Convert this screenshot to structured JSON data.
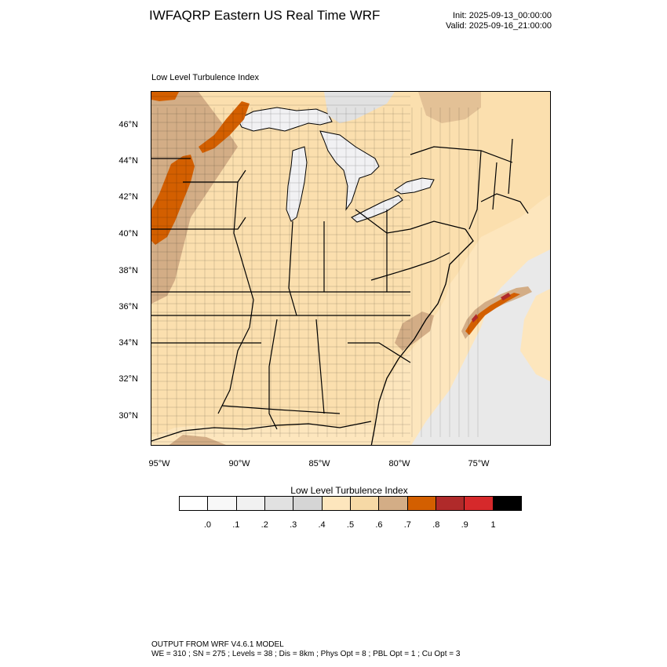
{
  "header": {
    "title": "IWFAQRP Eastern US Real Time WRF",
    "init": "Init: 2025-09-13_00:00:00",
    "valid": "Valid: 2025-09-16_21:00:00"
  },
  "field_title": "Low Level Turbulence Index",
  "map": {
    "lat_labels": [
      "46°N",
      "44°N",
      "42°N",
      "40°N",
      "38°N",
      "36°N",
      "34°N",
      "32°N",
      "30°N"
    ],
    "lon_labels": [
      "95°W",
      "90°W",
      "85°W",
      "80°W",
      "75°W"
    ],
    "colors": {
      "land_base": "#fbdfae",
      "water_low": "#f1f1f3",
      "water_mid": "#e1e1e1",
      "ocean_light": "#fde6bd",
      "tan": "#d3ad86",
      "orange": "#d35f00",
      "dark_red": "#b02a2a",
      "boundary": "#000000"
    }
  },
  "colorbar": {
    "title": "Low Level Turbulence Index",
    "colors": [
      "#ffffff",
      "#f8f8f8",
      "#f1f1f1",
      "#e1e1e1",
      "#d5d5d5",
      "#fde6bd",
      "#f6d9a6",
      "#d3ad86",
      "#d35f00",
      "#b02a2a",
      "#d6292b",
      "#000000"
    ],
    "labels": [
      ".0",
      ".1",
      ".2",
      ".3",
      ".4",
      ".5",
      ".6",
      ".7",
      ".8",
      ".9",
      "1"
    ]
  },
  "footer": {
    "line1": "OUTPUT FROM WRF V4.6.1 MODEL",
    "line2": "WE = 310 ; SN = 275 ; Levels = 38 ; Dis = 8km ; Phys Opt = 8 ; PBL Opt = 1 ; Cu Opt = 3"
  }
}
